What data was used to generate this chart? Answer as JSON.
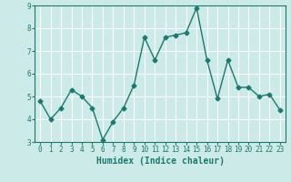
{
  "x": [
    0,
    1,
    2,
    3,
    4,
    5,
    6,
    7,
    8,
    9,
    10,
    11,
    12,
    13,
    14,
    15,
    16,
    17,
    18,
    19,
    20,
    21,
    22,
    23
  ],
  "y": [
    4.8,
    4.0,
    4.5,
    5.3,
    5.0,
    4.5,
    3.1,
    3.9,
    4.5,
    5.5,
    7.6,
    6.6,
    7.6,
    7.7,
    7.8,
    8.9,
    6.6,
    4.9,
    6.6,
    5.4,
    5.4,
    5.0,
    5.1,
    4.4
  ],
  "line_color": "#1a7a6e",
  "marker": "D",
  "markersize": 2.5,
  "linewidth": 1.0,
  "bg_color": "#cceae8",
  "grid_color": "#ffffff",
  "xlabel": "Humidex (Indice chaleur)",
  "ylim": [
    3,
    9
  ],
  "xlim": [
    -0.5,
    23.5
  ],
  "yticks": [
    3,
    4,
    5,
    6,
    7,
    8,
    9
  ],
  "xticks": [
    0,
    1,
    2,
    3,
    4,
    5,
    6,
    7,
    8,
    9,
    10,
    11,
    12,
    13,
    14,
    15,
    16,
    17,
    18,
    19,
    20,
    21,
    22,
    23
  ],
  "tick_color": "#1a7a6e",
  "label_fontsize": 5.5,
  "axis_fontsize": 7,
  "spine_color": "#1a7a6e"
}
